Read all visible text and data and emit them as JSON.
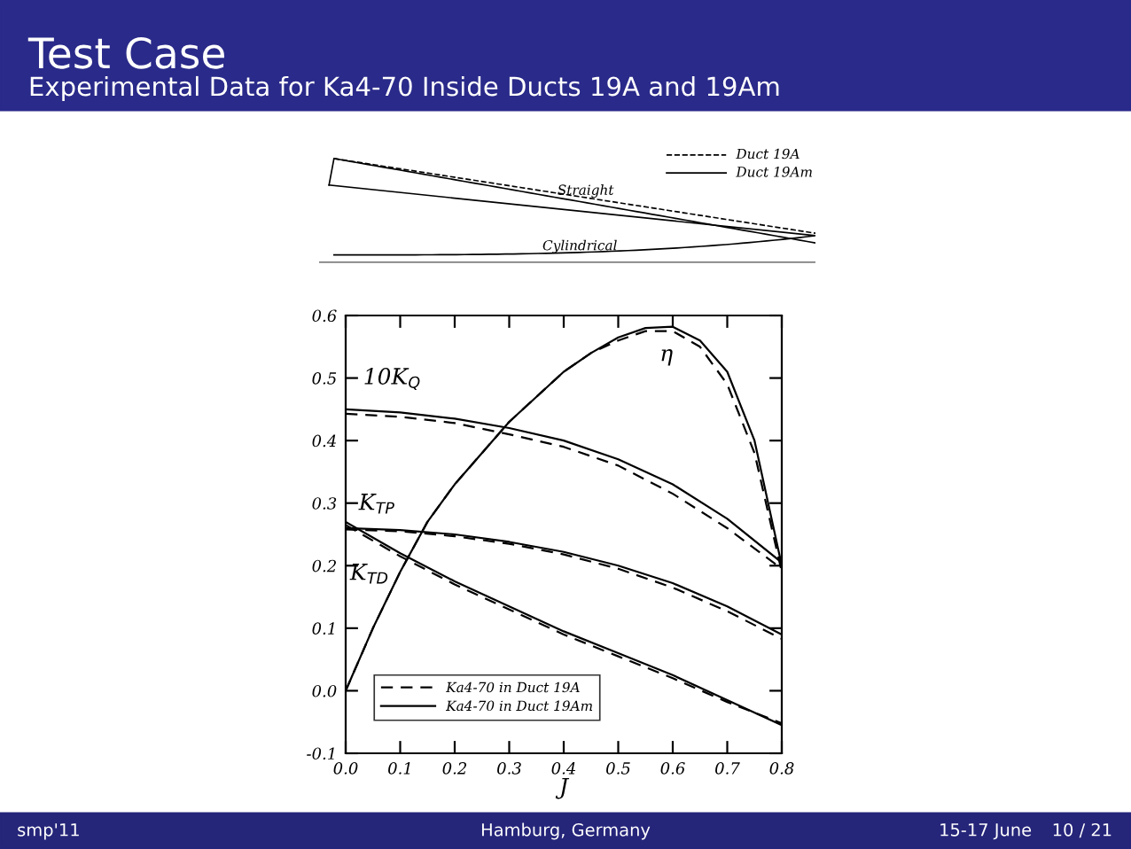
{
  "chart_data": {
    "type": "line",
    "title": "Test Case",
    "subtitle": "Experimental Data for Ka4-70 Inside Ducts 19A and 19Am",
    "xlabel": "J",
    "x": [
      0.0,
      0.1,
      0.2,
      0.3,
      0.4,
      0.5,
      0.6,
      0.7,
      0.8
    ],
    "series": [
      {
        "name": "Ka4-70 in Duct 19A",
        "color": "#000000",
        "line_style": "dashed",
        "x": [
          0.0,
          0.05,
          0.1,
          0.15,
          0.2,
          0.25,
          0.3,
          0.35,
          0.4,
          0.45,
          0.5,
          0.55,
          0.6,
          0.65,
          0.7,
          0.75,
          0.8
        ],
        "values": [
          0.0,
          0.1,
          0.19,
          0.27,
          0.33,
          0.38,
          0.43,
          0.47,
          0.51,
          0.54,
          0.56,
          0.575,
          0.575,
          0.55,
          0.49,
          0.38,
          0.19
        ]
      },
      {
        "name": "Ka4-70 in Duct 19Am",
        "color": "#000000",
        "line_style": "solid",
        "x": [
          0.0,
          0.05,
          0.1,
          0.15,
          0.2,
          0.25,
          0.3,
          0.35,
          0.4,
          0.45,
          0.5,
          0.55,
          0.6,
          0.65,
          0.7,
          0.75,
          0.8
        ],
        "values": [
          0.0,
          0.1,
          0.19,
          0.27,
          0.33,
          0.38,
          0.43,
          0.47,
          0.51,
          0.54,
          0.565,
          0.58,
          0.582,
          0.56,
          0.51,
          0.4,
          0.2
        ]
      },
      {
        "color": "#000000",
        "line_style": "dashed",
        "values": [
          0.443,
          0.438,
          0.428,
          0.41,
          0.39,
          0.36,
          0.315,
          0.26,
          0.195
        ]
      },
      {
        "color": "#000000",
        "line_style": "solid",
        "values": [
          0.45,
          0.445,
          0.435,
          0.42,
          0.4,
          0.37,
          0.33,
          0.275,
          0.205
        ]
      },
      {
        "color": "#000000",
        "line_style": "dashed",
        "values": [
          0.258,
          0.255,
          0.247,
          0.235,
          0.218,
          0.195,
          0.165,
          0.127,
          0.083
        ]
      },
      {
        "color": "#000000",
        "line_style": "solid",
        "values": [
          0.26,
          0.257,
          0.25,
          0.238,
          0.222,
          0.2,
          0.172,
          0.135,
          0.09
        ]
      },
      {
        "color": "#000000",
        "line_style": "dashed",
        "values": [
          0.265,
          0.215,
          0.17,
          0.13,
          0.09,
          0.055,
          0.02,
          -0.018,
          -0.052
        ]
      },
      {
        "color": "#000000",
        "line_style": "solid",
        "values": [
          0.27,
          0.22,
          0.175,
          0.135,
          0.095,
          0.06,
          0.025,
          -0.015,
          -0.055
        ]
      }
    ],
    "xlim": [
      0.0,
      0.8
    ],
    "ylim": [
      -0.1,
      0.6
    ],
    "xticks": [
      {
        "value": 0.0,
        "label": "0.0"
      },
      0.1,
      0.2,
      0.3,
      0.4,
      0.5,
      0.6,
      0.7,
      0.8
    ],
    "yticks": [
      -0.1,
      {
        "value": 0.0,
        "label": "0.0"
      },
      0.1,
      0.2,
      0.3,
      0.4,
      0.5,
      0.6
    ],
    "annotations": [
      "10K$_{Q}$",
      "K$_{TP}$",
      "K$_{TD}$",
      "η",
      "Straight",
      "Cylindrical",
      "Duct 19A",
      "Duct 19Am",
      "smp'11",
      "Hamburg, Germany",
      "15-17 June",
      "10 / 21"
    ],
    "grid": false,
    "legend": "bottom left",
    "marker": "none"
  }
}
